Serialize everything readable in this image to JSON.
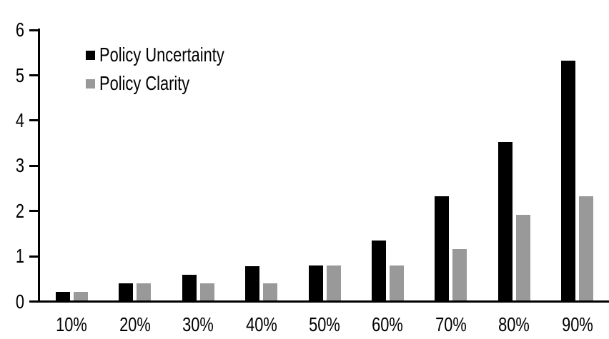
{
  "chart_data": {
    "type": "bar",
    "title": "",
    "xlabel": "",
    "ylabel": "",
    "categories": [
      "10%",
      "20%",
      "30%",
      "40%",
      "50%",
      "60%",
      "70%",
      "80%",
      "90%"
    ],
    "series": [
      {
        "name": "Policy Uncertainty",
        "color": "#000000",
        "values": [
          0.19,
          0.38,
          0.57,
          0.76,
          0.78,
          1.33,
          2.3,
          3.5,
          5.3
        ]
      },
      {
        "name": "Policy Clarity",
        "color": "#999999",
        "values": [
          0.19,
          0.38,
          0.38,
          0.38,
          0.77,
          0.77,
          1.14,
          1.9,
          2.3
        ]
      }
    ],
    "ylim": [
      0,
      6
    ],
    "yticks": [
      0,
      1,
      2,
      3,
      4,
      5,
      6
    ],
    "grid": false,
    "legend_position": "top-left",
    "axis_color": "#000000",
    "background_color": "#ffffff"
  }
}
